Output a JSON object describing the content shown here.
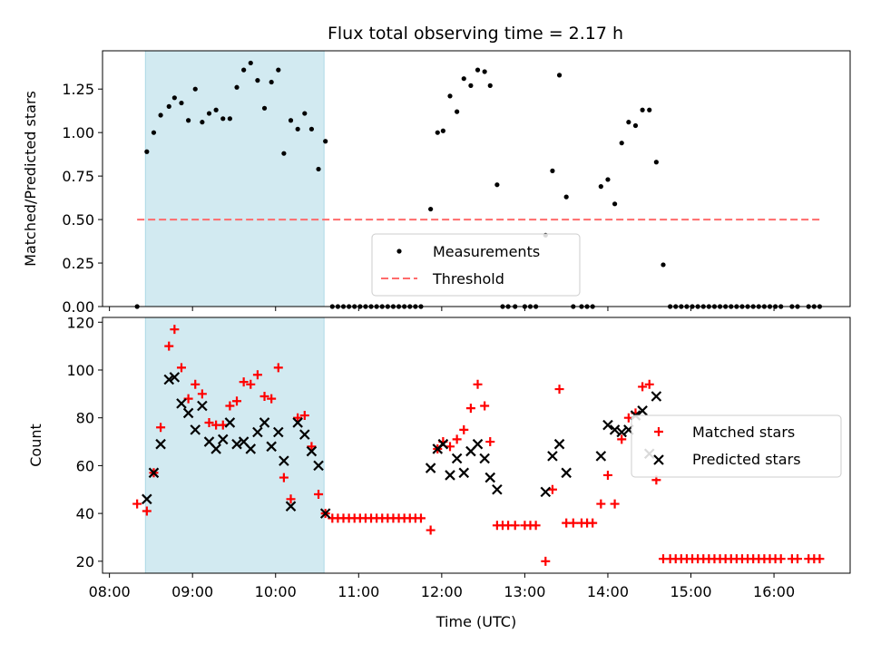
{
  "title": "Flux total observing time = 2.17 h",
  "colors": {
    "shaded": "#add8e6",
    "measurement": "#000000",
    "threshold": "#ff6b6b",
    "matched": "#ff0000",
    "predicted": "#000000"
  },
  "chart_data": [
    {
      "type": "scatter",
      "panel": "top",
      "xlabel": "",
      "ylabel": "Matched/Predicted stars",
      "xlim": [
        "07:55",
        "16:55"
      ],
      "ylim": [
        0,
        1.47
      ],
      "yticks": [
        "0.00",
        "0.25",
        "0.50",
        "0.75",
        "1.00",
        "1.25"
      ],
      "shaded_span": [
        "08:26",
        "10:35"
      ],
      "legend_position": "lower center",
      "legend": [
        "Measurements",
        "Threshold"
      ],
      "threshold": {
        "name": "Threshold",
        "y": 0.5,
        "x_range": [
          "08:20",
          "16:35"
        ]
      },
      "series": [
        {
          "name": "Measurements",
          "x": [
            "08:20",
            "08:27",
            "08:32",
            "08:37",
            "08:43",
            "08:47",
            "08:52",
            "08:57",
            "09:02",
            "09:07",
            "09:12",
            "09:17",
            "09:22",
            "09:27",
            "09:32",
            "09:37",
            "09:42",
            "09:47",
            "09:52",
            "09:57",
            "10:02",
            "10:06",
            "10:11",
            "10:16",
            "10:21",
            "10:26",
            "10:31",
            "10:36",
            "10:41",
            "10:45",
            "10:49",
            "10:53",
            "10:57",
            "11:01",
            "11:05",
            "11:09",
            "11:13",
            "11:17",
            "11:21",
            "11:25",
            "11:29",
            "11:33",
            "11:37",
            "11:41",
            "11:45",
            "11:52",
            "11:57",
            "12:01",
            "12:06",
            "12:11",
            "12:16",
            "12:21",
            "12:26",
            "12:31",
            "12:35",
            "12:40",
            "12:44",
            "12:48",
            "12:53",
            "13:00",
            "13:04",
            "13:08",
            "13:15",
            "13:20",
            "13:25",
            "13:30",
            "13:35",
            "13:41",
            "13:45",
            "13:49",
            "13:55",
            "14:00",
            "14:05",
            "14:10",
            "14:15",
            "14:20",
            "14:25",
            "14:30",
            "14:35",
            "14:40",
            "14:45",
            "14:49",
            "14:53",
            "14:57",
            "15:01",
            "15:05",
            "15:09",
            "15:13",
            "15:17",
            "15:21",
            "15:25",
            "15:29",
            "15:33",
            "15:37",
            "15:41",
            "15:45",
            "15:49",
            "15:53",
            "15:57",
            "16:01",
            "16:05",
            "16:13",
            "16:17",
            "16:25",
            "16:29",
            "16:33"
          ],
          "values": [
            0,
            0.89,
            1.0,
            1.1,
            1.15,
            1.2,
            1.17,
            1.07,
            1.25,
            1.06,
            1.11,
            1.13,
            1.08,
            1.08,
            1.26,
            1.36,
            1.4,
            1.3,
            1.14,
            1.29,
            1.36,
            0.88,
            1.07,
            1.02,
            1.11,
            1.02,
            0.79,
            0.95,
            0,
            0,
            0,
            0,
            0,
            0,
            0,
            0,
            0,
            0,
            0,
            0,
            0,
            0,
            0,
            0,
            0,
            0.56,
            1.0,
            1.01,
            1.21,
            1.12,
            1.31,
            1.27,
            1.36,
            1.35,
            1.27,
            0.7,
            0,
            0,
            0,
            0,
            0,
            0,
            0.41,
            0.78,
            1.33,
            0.63,
            0,
            0,
            0,
            0,
            0.69,
            0.73,
            0.59,
            0.94,
            1.06,
            1.04,
            1.13,
            1.13,
            0.83,
            0.24,
            0,
            0,
            0,
            0,
            0,
            0,
            0,
            0,
            0,
            0,
            0,
            0,
            0,
            0,
            0,
            0,
            0,
            0,
            0,
            0,
            0,
            0,
            0,
            0,
            0,
            0
          ]
        }
      ]
    },
    {
      "type": "scatter",
      "panel": "bottom",
      "xlabel": "Time (UTC)",
      "ylabel": "Count",
      "xlim": [
        "07:55",
        "16:55"
      ],
      "ylim": [
        15,
        122
      ],
      "yticks": [
        20,
        40,
        60,
        80,
        100,
        120
      ],
      "xticks": [
        "08:00",
        "09:00",
        "10:00",
        "11:00",
        "12:00",
        "13:00",
        "14:00",
        "15:00",
        "16:00"
      ],
      "shaded_span": [
        "08:26",
        "10:35"
      ],
      "legend_position": "center right",
      "legend": [
        "Matched stars",
        "Predicted stars"
      ],
      "series": [
        {
          "name": "Matched stars",
          "marker": "+",
          "x": [
            "08:20",
            "08:27",
            "08:32",
            "08:37",
            "08:43",
            "08:47",
            "08:52",
            "08:57",
            "09:02",
            "09:07",
            "09:12",
            "09:17",
            "09:22",
            "09:27",
            "09:32",
            "09:37",
            "09:42",
            "09:47",
            "09:52",
            "09:57",
            "10:02",
            "10:06",
            "10:11",
            "10:16",
            "10:21",
            "10:26",
            "10:31",
            "10:36",
            "10:41",
            "10:45",
            "10:49",
            "10:53",
            "10:57",
            "11:01",
            "11:05",
            "11:09",
            "11:13",
            "11:17",
            "11:21",
            "11:25",
            "11:29",
            "11:33",
            "11:37",
            "11:41",
            "11:45",
            "11:52",
            "11:57",
            "12:01",
            "12:06",
            "12:11",
            "12:16",
            "12:21",
            "12:26",
            "12:31",
            "12:35",
            "12:40",
            "12:44",
            "12:48",
            "12:53",
            "13:00",
            "13:04",
            "13:08",
            "13:15",
            "13:20",
            "13:25",
            "13:30",
            "13:35",
            "13:41",
            "13:45",
            "13:49",
            "13:55",
            "14:00",
            "14:05",
            "14:10",
            "14:15",
            "14:20",
            "14:25",
            "14:30",
            "14:35",
            "14:40",
            "14:45",
            "14:49",
            "14:53",
            "14:57",
            "15:01",
            "15:05",
            "15:09",
            "15:13",
            "15:17",
            "15:21",
            "15:25",
            "15:29",
            "15:33",
            "15:37",
            "15:41",
            "15:45",
            "15:49",
            "15:53",
            "15:57",
            "16:01",
            "16:05",
            "16:13",
            "16:17",
            "16:25",
            "16:29",
            "16:33"
          ],
          "values": [
            44,
            41,
            57,
            76,
            110,
            117,
            101,
            88,
            94,
            90,
            78,
            77,
            77,
            85,
            87,
            95,
            94,
            98,
            89,
            88,
            101,
            55,
            46,
            80,
            81,
            68,
            48,
            40,
            38,
            38,
            38,
            38,
            38,
            38,
            38,
            38,
            38,
            38,
            38,
            38,
            38,
            38,
            38,
            38,
            38,
            33,
            67,
            70,
            68,
            71,
            75,
            84,
            94,
            85,
            70,
            35,
            35,
            35,
            35,
            35,
            35,
            35,
            20,
            50,
            92,
            36,
            36,
            36,
            36,
            36,
            44,
            56,
            44,
            71,
            80,
            82,
            93,
            94,
            54,
            21,
            21,
            21,
            21,
            21,
            21,
            21,
            21,
            21,
            21,
            21,
            21,
            21,
            21,
            21,
            21,
            21,
            21,
            21,
            21,
            21,
            21,
            21,
            21,
            21,
            21,
            21
          ]
        },
        {
          "name": "Predicted stars",
          "marker": "x",
          "x": [
            "08:27",
            "08:32",
            "08:37",
            "08:43",
            "08:47",
            "08:52",
            "08:57",
            "09:02",
            "09:07",
            "09:12",
            "09:17",
            "09:22",
            "09:27",
            "09:32",
            "09:37",
            "09:42",
            "09:47",
            "09:52",
            "09:57",
            "10:02",
            "10:06",
            "10:11",
            "10:16",
            "10:21",
            "10:26",
            "10:31",
            "10:36",
            "11:52",
            "11:57",
            "12:01",
            "12:06",
            "12:11",
            "12:16",
            "12:21",
            "12:26",
            "12:31",
            "12:35",
            "12:40",
            "13:15",
            "13:20",
            "13:25",
            "13:30",
            "13:55",
            "14:00",
            "14:05",
            "14:10",
            "14:15",
            "14:20",
            "14:25",
            "14:30",
            "14:35"
          ],
          "values": [
            46,
            57,
            69,
            96,
            97,
            86,
            82,
            75,
            85,
            70,
            67,
            71,
            78,
            69,
            70,
            67,
            74,
            78,
            68,
            74,
            62,
            43,
            78,
            73,
            66,
            60,
            40,
            59,
            67,
            69,
            56,
            63,
            57,
            66,
            69,
            63,
            55,
            50,
            49,
            64,
            69,
            57,
            64,
            77,
            75,
            74,
            75,
            81,
            83,
            65,
            89
          ]
        }
      ]
    }
  ]
}
